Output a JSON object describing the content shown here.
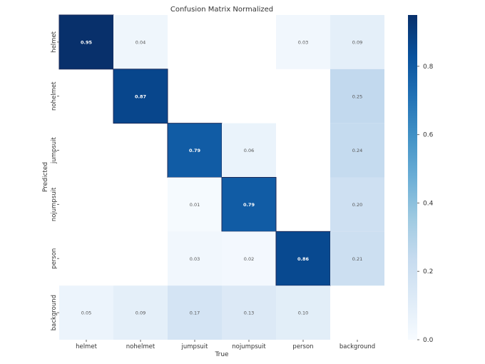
{
  "chart_data": {
    "type": "heatmap",
    "title": "Confusion Matrix Normalized",
    "xlabel": "True",
    "ylabel": "Predicted",
    "x_categories": [
      "helmet",
      "nohelmet",
      "jumpsuit",
      "nojumpsuit",
      "person",
      "background"
    ],
    "y_categories": [
      "helmet",
      "nohelmet",
      "jumpsuit",
      "nojumpsuit",
      "person",
      "background"
    ],
    "values": [
      [
        0.95,
        0.04,
        null,
        null,
        0.03,
        0.09
      ],
      [
        null,
        0.87,
        null,
        null,
        null,
        0.25
      ],
      [
        null,
        null,
        0.79,
        0.06,
        null,
        0.24
      ],
      [
        null,
        null,
        0.01,
        0.79,
        null,
        0.2
      ],
      [
        null,
        null,
        0.03,
        0.02,
        0.86,
        0.21
      ],
      [
        0.05,
        0.09,
        0.17,
        0.13,
        0.1,
        null
      ]
    ],
    "colormap": "Blues",
    "vmin": 0.0,
    "vmax": 0.95,
    "colorbar_ticks": [
      "0.0",
      "0.2",
      "0.4",
      "0.6",
      "0.8"
    ],
    "colorbar_tick_values": [
      0.0,
      0.2,
      0.4,
      0.6,
      0.8
    ]
  }
}
